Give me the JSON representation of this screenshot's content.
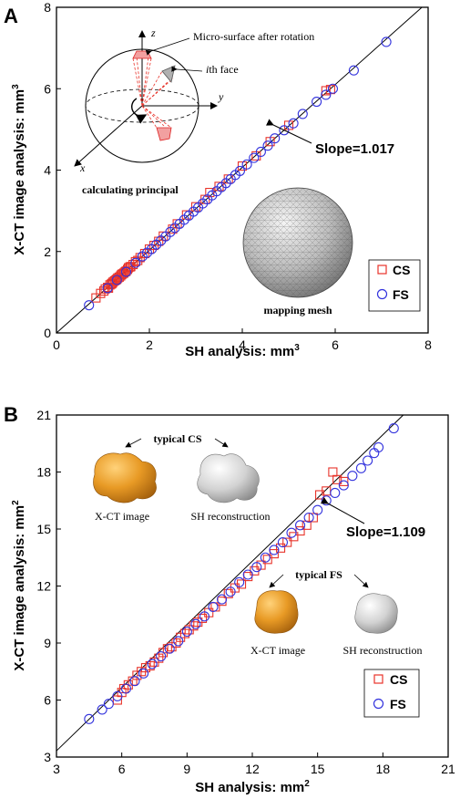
{
  "chart_data": [
    {
      "type": "scatter",
      "panel_label": "A",
      "xlabel": "SH analysis: mm",
      "xlabel_sup": "3",
      "ylabel": "X-CT image analysis: mm",
      "ylabel_sup": "3",
      "xlim": [
        0,
        8
      ],
      "ylim": [
        0,
        8
      ],
      "xticks": [
        "0",
        "2",
        "4",
        "6",
        "8"
      ],
      "yticks": [
        "0",
        "2",
        "4",
        "6",
        "8"
      ],
      "grid": false,
      "legend_position": "bottom-right",
      "fit_line": {
        "slope": 1.017,
        "label": "Slope=1.017"
      },
      "series": [
        {
          "name": "CS",
          "marker": "square",
          "color": "#e8332a",
          "points": [
            [
              0.85,
              0.86
            ],
            [
              0.95,
              0.97
            ],
            [
              1.02,
              1.03
            ],
            [
              1.05,
              1.08
            ],
            [
              1.1,
              1.12
            ],
            [
              1.12,
              1.1
            ],
            [
              1.15,
              1.18
            ],
            [
              1.18,
              1.2
            ],
            [
              1.2,
              1.22
            ],
            [
              1.22,
              1.25
            ],
            [
              1.25,
              1.28
            ],
            [
              1.28,
              1.3
            ],
            [
              1.3,
              1.32
            ],
            [
              1.32,
              1.35
            ],
            [
              1.35,
              1.37
            ],
            [
              1.38,
              1.4
            ],
            [
              1.4,
              1.43
            ],
            [
              1.42,
              1.45
            ],
            [
              1.45,
              1.47
            ],
            [
              1.48,
              1.5
            ],
            [
              1.5,
              1.52
            ],
            [
              1.53,
              1.56
            ],
            [
              1.55,
              1.6
            ],
            [
              1.58,
              1.62
            ],
            [
              1.6,
              1.63
            ],
            [
              1.65,
              1.68
            ],
            [
              1.7,
              1.75
            ],
            [
              1.75,
              1.78
            ],
            [
              1.8,
              1.85
            ],
            [
              1.9,
              1.95
            ],
            [
              2.0,
              2.06
            ],
            [
              2.1,
              2.15
            ],
            [
              2.2,
              2.25
            ],
            [
              2.3,
              2.38
            ],
            [
              2.5,
              2.55
            ],
            [
              2.6,
              2.68
            ],
            [
              2.8,
              2.9
            ],
            [
              3.0,
              3.1
            ],
            [
              3.2,
              3.28
            ],
            [
              3.3,
              3.45
            ],
            [
              3.5,
              3.6
            ],
            [
              3.7,
              3.78
            ],
            [
              4.0,
              4.1
            ],
            [
              4.3,
              4.35
            ],
            [
              4.6,
              4.7
            ],
            [
              5.0,
              5.1
            ],
            [
              5.8,
              5.95
            ],
            [
              5.9,
              5.98
            ]
          ]
        },
        {
          "name": "FS",
          "marker": "circle",
          "color": "#3333dd",
          "points": [
            [
              0.7,
              0.68
            ],
            [
              1.1,
              1.1
            ],
            [
              1.3,
              1.3
            ],
            [
              1.5,
              1.5
            ],
            [
              1.7,
              1.72
            ],
            [
              1.85,
              1.88
            ],
            [
              1.95,
              1.97
            ],
            [
              2.05,
              2.06
            ],
            [
              2.15,
              2.17
            ],
            [
              2.25,
              2.27
            ],
            [
              2.35,
              2.37
            ],
            [
              2.45,
              2.48
            ],
            [
              2.55,
              2.58
            ],
            [
              2.65,
              2.68
            ],
            [
              2.75,
              2.78
            ],
            [
              2.85,
              2.88
            ],
            [
              2.95,
              2.98
            ],
            [
              3.05,
              3.08
            ],
            [
              3.15,
              3.18
            ],
            [
              3.25,
              3.28
            ],
            [
              3.35,
              3.38
            ],
            [
              3.45,
              3.48
            ],
            [
              3.55,
              3.58
            ],
            [
              3.65,
              3.68
            ],
            [
              3.75,
              3.78
            ],
            [
              3.85,
              3.88
            ],
            [
              3.95,
              3.98
            ],
            [
              4.1,
              4.14
            ],
            [
              4.25,
              4.3
            ],
            [
              4.4,
              4.45
            ],
            [
              4.55,
              4.6
            ],
            [
              4.7,
              4.78
            ],
            [
              4.9,
              4.98
            ],
            [
              5.1,
              5.15
            ],
            [
              5.3,
              5.38
            ],
            [
              5.6,
              5.68
            ],
            [
              5.8,
              5.85
            ],
            [
              5.95,
              6.0
            ],
            [
              6.4,
              6.45
            ],
            [
              7.1,
              7.15
            ]
          ]
        }
      ],
      "annotations": {
        "rotation_label": "Micro-surface  after rotation",
        "face_label_italic": "i",
        "face_label_rest": "th face",
        "principal_label": "calculating principal",
        "mesh_label": "mapping mesh",
        "axis_z": "z",
        "axis_y": "y",
        "axis_x": "x"
      }
    },
    {
      "type": "scatter",
      "panel_label": "B",
      "xlabel": "SH analysis: mm",
      "xlabel_sup": "2",
      "ylabel": "X-CT image analysis: mm",
      "ylabel_sup": "2",
      "xlim": [
        3,
        21
      ],
      "ylim": [
        3,
        21
      ],
      "xticks": [
        "3",
        "6",
        "9",
        "12",
        "15",
        "18",
        "21"
      ],
      "yticks": [
        "3",
        "6",
        "9",
        "12",
        "15",
        "18",
        "21"
      ],
      "grid": false,
      "legend_position": "bottom-right",
      "fit_line": {
        "slope": 1.109,
        "label": "Slope=1.109"
      },
      "series": [
        {
          "name": "CS",
          "marker": "square",
          "color": "#e8332a",
          "points": [
            [
              5.8,
              6.0
            ],
            [
              6.0,
              6.4
            ],
            [
              6.1,
              6.6
            ],
            [
              6.3,
              6.8
            ],
            [
              6.5,
              7.0
            ],
            [
              6.7,
              7.3
            ],
            [
              6.9,
              7.5
            ],
            [
              7.1,
              7.7
            ],
            [
              7.3,
              7.8
            ],
            [
              7.5,
              8.0
            ],
            [
              7.7,
              8.2
            ],
            [
              7.9,
              8.5
            ],
            [
              8.1,
              8.7
            ],
            [
              8.3,
              8.8
            ],
            [
              8.5,
              9.0
            ],
            [
              8.7,
              9.3
            ],
            [
              8.9,
              9.5
            ],
            [
              9.1,
              9.7
            ],
            [
              9.3,
              9.9
            ],
            [
              9.5,
              10.1
            ],
            [
              9.7,
              10.3
            ],
            [
              10.0,
              10.6
            ],
            [
              10.3,
              10.9
            ],
            [
              10.6,
              11.2
            ],
            [
              10.9,
              11.6
            ],
            [
              11.2,
              11.9
            ],
            [
              11.5,
              12.1
            ],
            [
              11.8,
              12.5
            ],
            [
              12.1,
              12.8
            ],
            [
              12.4,
              13.1
            ],
            [
              12.7,
              13.4
            ],
            [
              13.0,
              13.7
            ],
            [
              13.3,
              14.0
            ],
            [
              13.6,
              14.3
            ],
            [
              13.9,
              14.6
            ],
            [
              14.2,
              14.9
            ],
            [
              14.5,
              15.2
            ],
            [
              14.8,
              15.6
            ],
            [
              15.1,
              16.8
            ],
            [
              15.4,
              17.0
            ],
            [
              15.7,
              18.0
            ],
            [
              15.9,
              17.6
            ],
            [
              16.2,
              17.5
            ]
          ]
        },
        {
          "name": "FS",
          "marker": "circle",
          "color": "#3333dd",
          "points": [
            [
              4.5,
              5.0
            ],
            [
              5.1,
              5.5
            ],
            [
              5.4,
              5.8
            ],
            [
              5.8,
              6.2
            ],
            [
              6.2,
              6.6
            ],
            [
              6.6,
              7.0
            ],
            [
              7.0,
              7.4
            ],
            [
              7.4,
              7.9
            ],
            [
              7.8,
              8.3
            ],
            [
              8.2,
              8.7
            ],
            [
              8.6,
              9.1
            ],
            [
              9.0,
              9.6
            ],
            [
              9.4,
              10.0
            ],
            [
              9.8,
              10.4
            ],
            [
              10.2,
              10.9
            ],
            [
              10.6,
              11.3
            ],
            [
              11.0,
              11.7
            ],
            [
              11.4,
              12.2
            ],
            [
              11.8,
              12.6
            ],
            [
              12.2,
              13.0
            ],
            [
              12.6,
              13.5
            ],
            [
              13.0,
              13.9
            ],
            [
              13.4,
              14.3
            ],
            [
              13.8,
              14.8
            ],
            [
              14.2,
              15.2
            ],
            [
              14.6,
              15.6
            ],
            [
              15.0,
              16.0
            ],
            [
              15.4,
              16.5
            ],
            [
              15.8,
              16.9
            ],
            [
              16.2,
              17.3
            ],
            [
              16.6,
              17.8
            ],
            [
              17.0,
              18.2
            ],
            [
              17.3,
              18.6
            ],
            [
              17.6,
              19.0
            ],
            [
              17.8,
              19.3
            ],
            [
              18.5,
              20.3
            ]
          ]
        }
      ],
      "annotations": {
        "typical_cs": "typical CS",
        "typical_fs": "typical FS",
        "xct_image_1": "X-CT image",
        "sh_recon_1": "SH reconstruction",
        "xct_image_2": "X-CT image",
        "sh_recon_2": "SH reconstruction"
      }
    }
  ]
}
